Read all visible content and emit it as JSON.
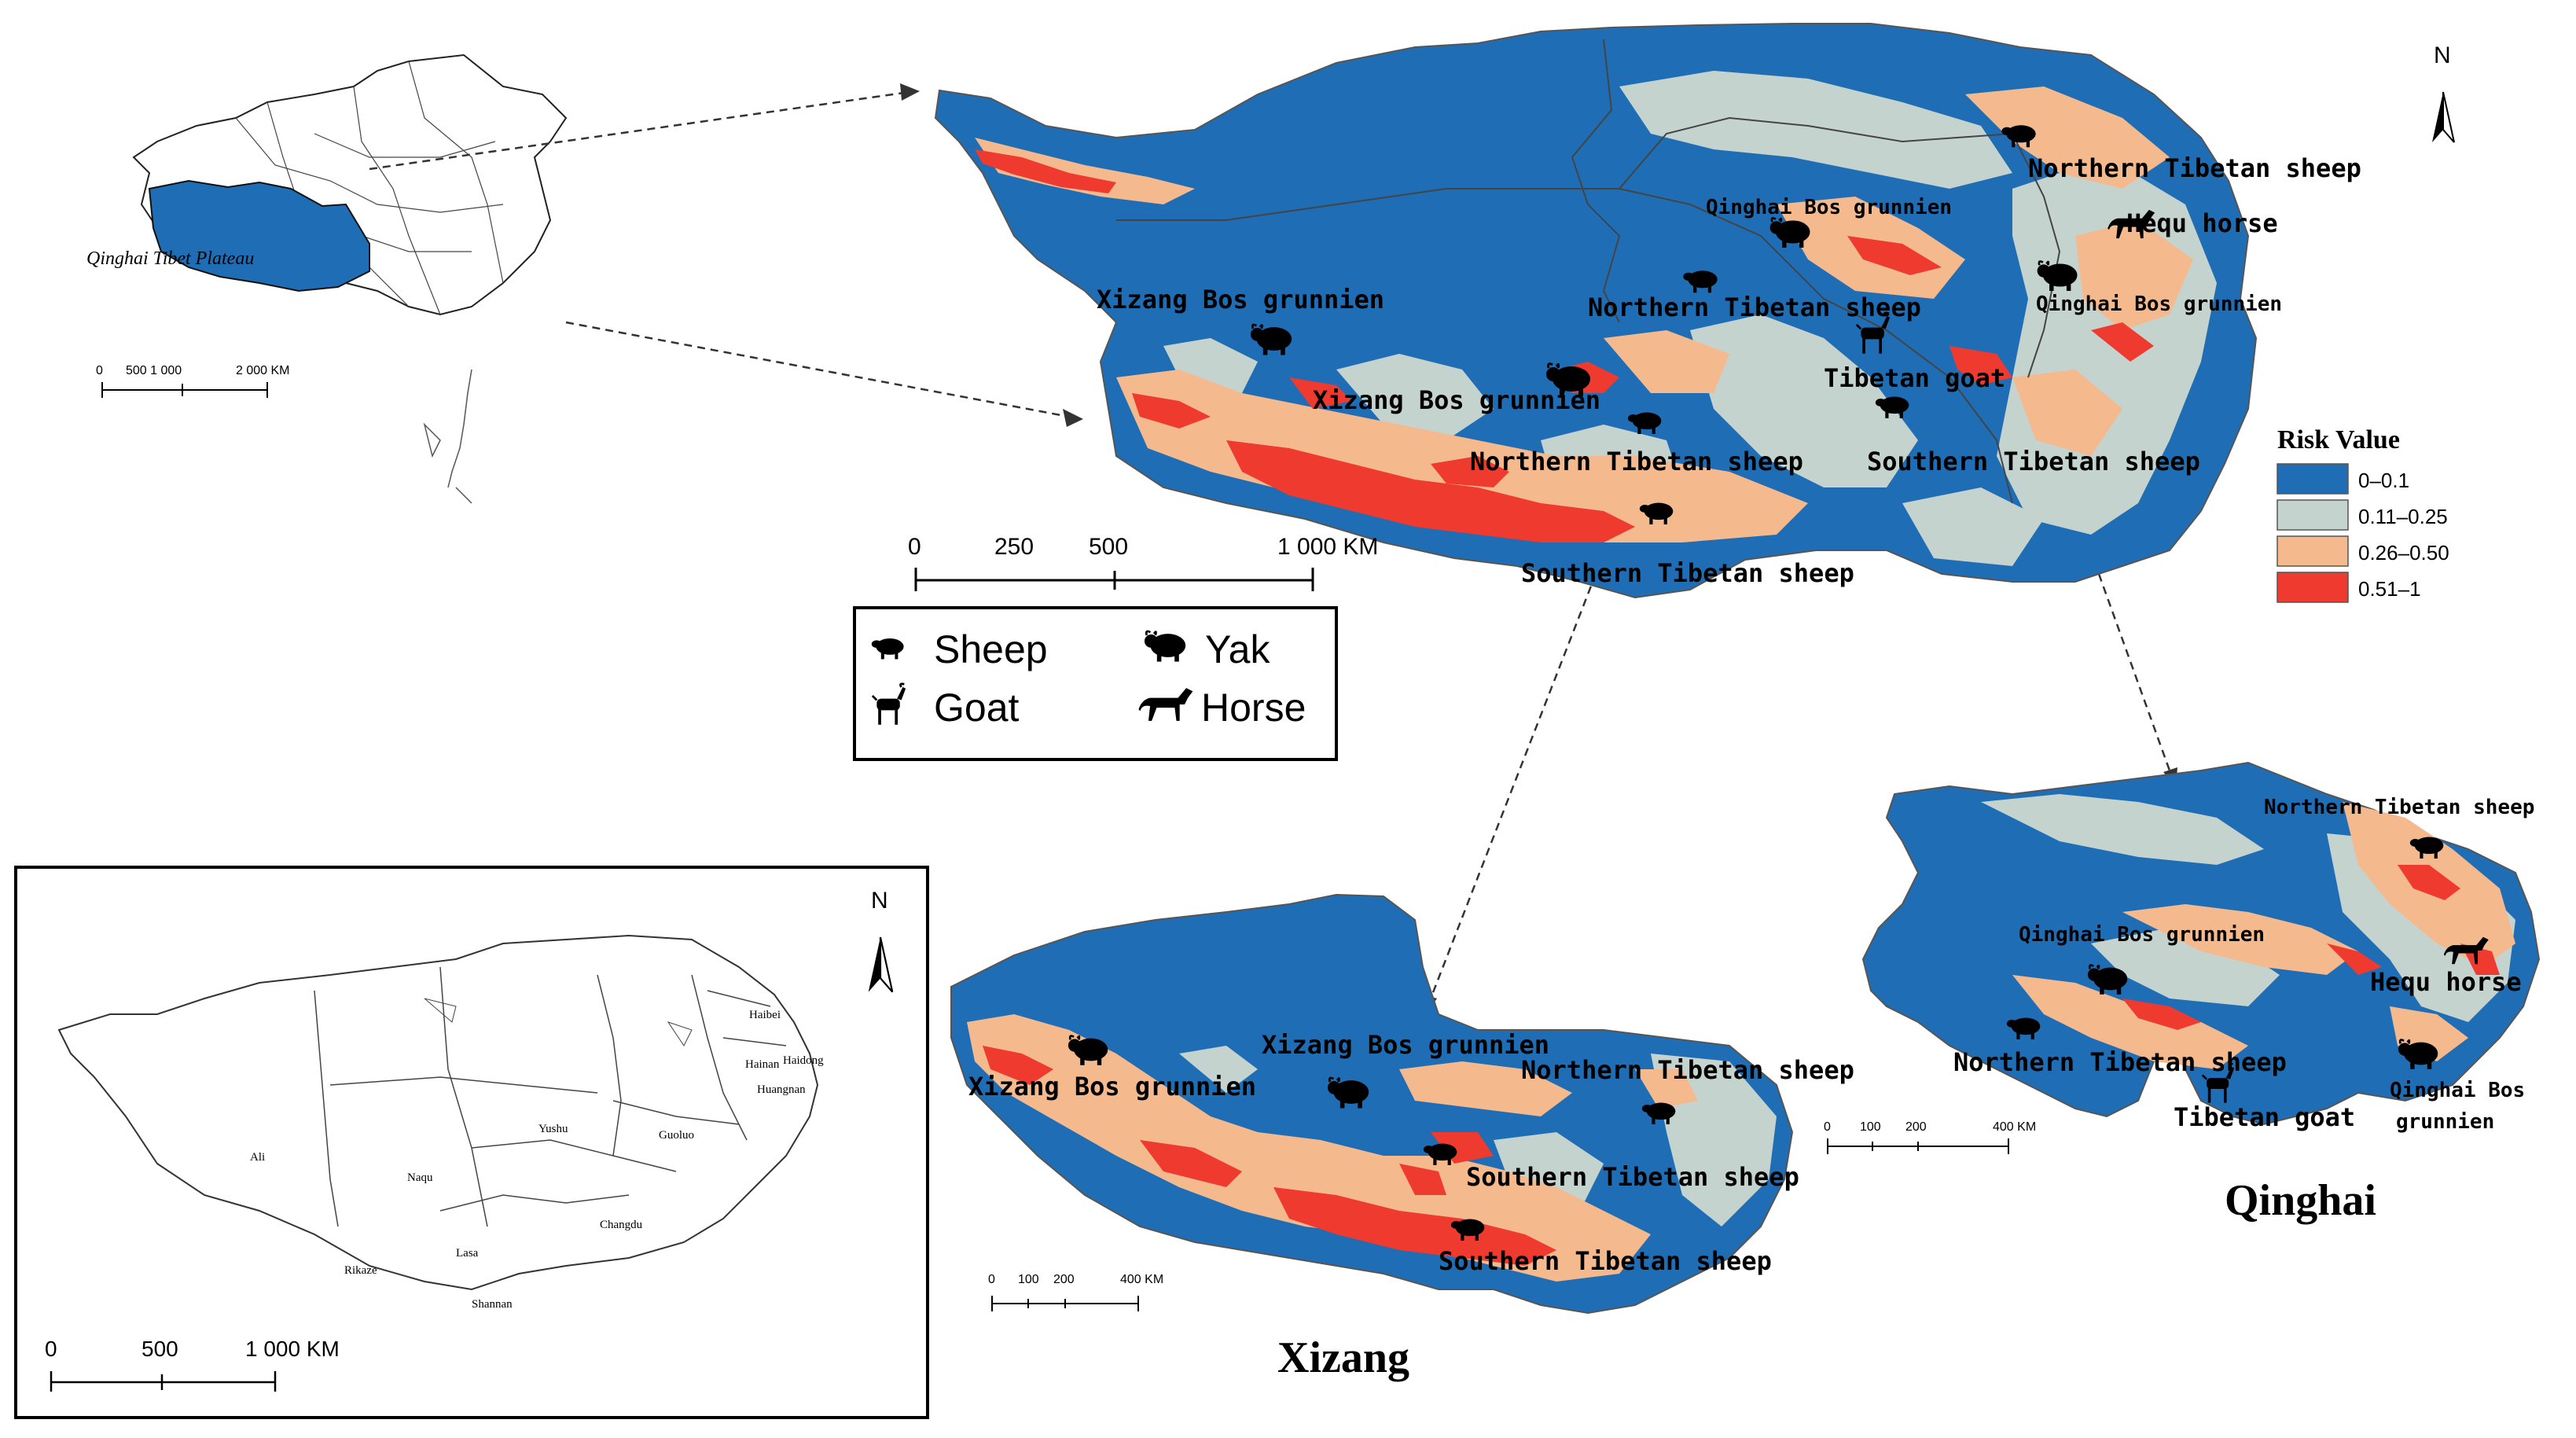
{
  "china_inset": {
    "plateau_label": "Qinghai Tibet Plateau",
    "scale_ticks": [
      "0",
      "500 1 000",
      "2 000 KM"
    ]
  },
  "main_map": {
    "scale_ticks": [
      "0",
      "250",
      "500",
      "1 000 KM"
    ],
    "north": "N",
    "labels": {
      "northern_tibetan_sheep_ne": "Northern Tibetan sheep",
      "qinghai_bos_center": "Qinghai Bos grunnien",
      "hequ_horse": "Hequ horse",
      "qinghai_bos_east": "Qinghai Bos grunnien",
      "xizang_bos_west": "Xizang Bos grunnien",
      "northern_tibetan_sheep_center": "Northern Tibetan sheep",
      "tibetan_goat": "Tibetan goat",
      "xizang_bos_center": "Xizang Bos grunnien",
      "northern_tibetan_sheep_south": "Northern Tibetan sheep",
      "southern_tibetan_sheep_east": "Southern Tibetan sheep",
      "southern_tibetan_sheep_south": "Southern Tibetan sheep"
    }
  },
  "risk_legend": {
    "title": "Risk Value",
    "items": [
      {
        "label": "0–0.1",
        "color": "#1f6eb5"
      },
      {
        "label": "0.11–0.25",
        "color": "#c5d3ce"
      },
      {
        "label": "0.26–0.50",
        "color": "#f5b98e"
      },
      {
        "label": "0.51–1",
        "color": "#ee3a2f"
      }
    ]
  },
  "animal_legend": {
    "sheep": "Sheep",
    "yak": "Yak",
    "goat": "Goat",
    "horse": "Horse"
  },
  "prefecture_map": {
    "north": "N",
    "scale_ticks": [
      "0",
      "500",
      "1 000 KM"
    ],
    "prefectures": {
      "haibei": "Haibei",
      "haidong": "Haidong",
      "hainan": "Hainan",
      "huangnan": "Huangnan",
      "yushu": "Yushu",
      "guoluo": "Guoluo",
      "ali": "Ali",
      "naqu": "Naqu",
      "changdu": "Changdu",
      "lasa": "Lasa",
      "rikaze": "Rikaze",
      "shannan": "Shannan"
    }
  },
  "xizang_map": {
    "title": "Xizang",
    "scale_ticks": [
      "0",
      "100",
      "200",
      "400 KM"
    ],
    "labels": {
      "xizang_bos_center": "Xizang Bos grunnien",
      "xizang_bos_west": "Xizang Bos grunnien",
      "northern_tibetan_sheep": "Northern Tibetan sheep",
      "southern_tibetan_sheep_1": "Southern Tibetan sheep",
      "southern_tibetan_sheep_2": "Southern Tibetan sheep"
    }
  },
  "qinghai_map": {
    "title": "Qinghai",
    "scale_ticks": [
      "0",
      "100",
      "200",
      "400 KM"
    ],
    "labels": {
      "northern_tibetan_sheep_ne": "Northern Tibetan sheep",
      "qinghai_bos_center": "Qinghai Bos grunnien",
      "hequ_horse": "Hequ horse",
      "northern_tibetan_sheep": "Northern Tibetan sheep",
      "qinghai_bos_east_1": "Qinghai Bos",
      "qinghai_bos_east_2": "grunnien",
      "tibetan_goat": "Tibetan goat"
    }
  }
}
